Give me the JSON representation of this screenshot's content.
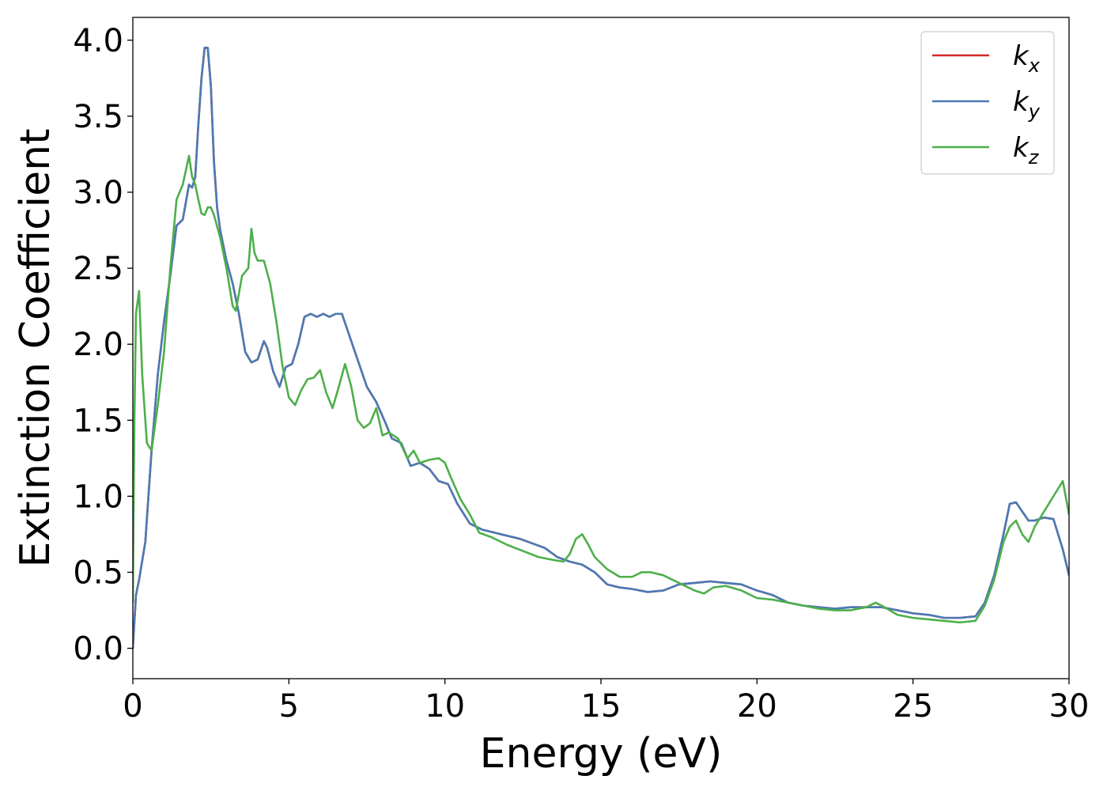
{
  "chart_data": {
    "type": "line",
    "xlabel": "Energy (eV)",
    "ylabel": "Extinction Coefficient",
    "xlim": [
      0,
      30
    ],
    "ylim": [
      -0.2,
      4.15
    ],
    "xticks": [
      0,
      5,
      10,
      15,
      20,
      25,
      30
    ],
    "xtick_labels": [
      "0",
      "5",
      "10",
      "15",
      "20",
      "25",
      "30"
    ],
    "yticks": [
      0.0,
      0.5,
      1.0,
      1.5,
      2.0,
      2.5,
      3.0,
      3.5,
      4.0
    ],
    "ytick_labels": [
      "0.0",
      "0.5",
      "1.0",
      "1.5",
      "2.0",
      "2.5",
      "3.0",
      "3.5",
      "4.0"
    ],
    "grid": false,
    "legend_position": "top-right",
    "series": [
      {
        "name": "k_x",
        "label_main": "k",
        "label_sub": "x",
        "color": "#d62728",
        "x": [
          0,
          0.1,
          0.2,
          0.4,
          0.6,
          0.8,
          1.0,
          1.2,
          1.4,
          1.6,
          1.8,
          1.9,
          2.0,
          2.1,
          2.2,
          2.3,
          2.4,
          2.5,
          2.6,
          2.7,
          2.8,
          3.0,
          3.2,
          3.4,
          3.6,
          3.8,
          4.0,
          4.2,
          4.3,
          4.5,
          4.7,
          4.9,
          5.1,
          5.3,
          5.5,
          5.7,
          5.9,
          6.1,
          6.3,
          6.5,
          6.7,
          6.9,
          7.2,
          7.5,
          7.8,
          8.1,
          8.3,
          8.6,
          8.9,
          9.2,
          9.5,
          9.8,
          10.1,
          10.4,
          10.8,
          11.2,
          11.6,
          12.0,
          12.4,
          12.8,
          13.2,
          13.6,
          14.0,
          14.4,
          14.8,
          15.2,
          15.6,
          16.0,
          16.5,
          17.0,
          17.5,
          18.0,
          18.5,
          19.0,
          19.5,
          20.0,
          20.5,
          21.0,
          21.5,
          22.0,
          22.5,
          23.0,
          23.5,
          24.0,
          24.5,
          25.0,
          25.5,
          26.0,
          26.5,
          27.0,
          27.3,
          27.6,
          27.9,
          28.1,
          28.3,
          28.5,
          28.7,
          28.9,
          29.2,
          29.5,
          29.8,
          30.0
        ],
        "y": [
          0.0,
          0.35,
          0.45,
          0.7,
          1.3,
          1.8,
          2.15,
          2.45,
          2.78,
          2.82,
          3.05,
          3.03,
          3.1,
          3.45,
          3.75,
          3.95,
          3.95,
          3.7,
          3.2,
          2.9,
          2.75,
          2.55,
          2.4,
          2.2,
          1.95,
          1.88,
          1.9,
          2.02,
          1.98,
          1.82,
          1.72,
          1.85,
          1.87,
          2.0,
          2.18,
          2.2,
          2.18,
          2.2,
          2.18,
          2.2,
          2.2,
          2.08,
          1.9,
          1.72,
          1.62,
          1.48,
          1.38,
          1.35,
          1.2,
          1.22,
          1.18,
          1.1,
          1.08,
          0.95,
          0.82,
          0.78,
          0.76,
          0.74,
          0.72,
          0.69,
          0.66,
          0.6,
          0.57,
          0.55,
          0.5,
          0.42,
          0.4,
          0.39,
          0.37,
          0.38,
          0.42,
          0.43,
          0.44,
          0.43,
          0.42,
          0.38,
          0.35,
          0.3,
          0.28,
          0.27,
          0.26,
          0.27,
          0.27,
          0.27,
          0.25,
          0.23,
          0.22,
          0.2,
          0.2,
          0.21,
          0.3,
          0.48,
          0.75,
          0.95,
          0.96,
          0.9,
          0.84,
          0.84,
          0.86,
          0.85,
          0.65,
          0.48
        ]
      },
      {
        "name": "k_y",
        "label_main": "k",
        "label_sub": "y",
        "color": "#4a7ab5",
        "x": [
          0,
          0.1,
          0.2,
          0.4,
          0.6,
          0.8,
          1.0,
          1.2,
          1.4,
          1.6,
          1.8,
          1.9,
          2.0,
          2.1,
          2.2,
          2.3,
          2.4,
          2.5,
          2.6,
          2.7,
          2.8,
          3.0,
          3.2,
          3.4,
          3.6,
          3.8,
          4.0,
          4.2,
          4.3,
          4.5,
          4.7,
          4.9,
          5.1,
          5.3,
          5.5,
          5.7,
          5.9,
          6.1,
          6.3,
          6.5,
          6.7,
          6.9,
          7.2,
          7.5,
          7.8,
          8.1,
          8.3,
          8.6,
          8.9,
          9.2,
          9.5,
          9.8,
          10.1,
          10.4,
          10.8,
          11.2,
          11.6,
          12.0,
          12.4,
          12.8,
          13.2,
          13.6,
          14.0,
          14.4,
          14.8,
          15.2,
          15.6,
          16.0,
          16.5,
          17.0,
          17.5,
          18.0,
          18.5,
          19.0,
          19.5,
          20.0,
          20.5,
          21.0,
          21.5,
          22.0,
          22.5,
          23.0,
          23.5,
          24.0,
          24.5,
          25.0,
          25.5,
          26.0,
          26.5,
          27.0,
          27.3,
          27.6,
          27.9,
          28.1,
          28.3,
          28.5,
          28.7,
          28.9,
          29.2,
          29.5,
          29.8,
          30.0
        ],
        "y": [
          0.0,
          0.35,
          0.45,
          0.7,
          1.3,
          1.8,
          2.15,
          2.45,
          2.78,
          2.82,
          3.05,
          3.03,
          3.1,
          3.45,
          3.75,
          3.95,
          3.95,
          3.7,
          3.2,
          2.9,
          2.75,
          2.55,
          2.4,
          2.2,
          1.95,
          1.88,
          1.9,
          2.02,
          1.98,
          1.82,
          1.72,
          1.85,
          1.87,
          2.0,
          2.18,
          2.2,
          2.18,
          2.2,
          2.18,
          2.2,
          2.2,
          2.08,
          1.9,
          1.72,
          1.62,
          1.48,
          1.38,
          1.35,
          1.2,
          1.22,
          1.18,
          1.1,
          1.08,
          0.95,
          0.82,
          0.78,
          0.76,
          0.74,
          0.72,
          0.69,
          0.66,
          0.6,
          0.57,
          0.55,
          0.5,
          0.42,
          0.4,
          0.39,
          0.37,
          0.38,
          0.42,
          0.43,
          0.44,
          0.43,
          0.42,
          0.38,
          0.35,
          0.3,
          0.28,
          0.27,
          0.26,
          0.27,
          0.27,
          0.27,
          0.25,
          0.23,
          0.22,
          0.2,
          0.2,
          0.21,
          0.3,
          0.48,
          0.75,
          0.95,
          0.96,
          0.9,
          0.84,
          0.84,
          0.86,
          0.85,
          0.65,
          0.48
        ]
      },
      {
        "name": "k_z",
        "label_main": "k",
        "label_sub": "z",
        "color": "#4daf4a",
        "x": [
          0,
          0.05,
          0.1,
          0.2,
          0.3,
          0.45,
          0.6,
          0.8,
          1.0,
          1.2,
          1.4,
          1.6,
          1.8,
          1.9,
          2.0,
          2.1,
          2.2,
          2.3,
          2.4,
          2.5,
          2.6,
          2.8,
          3.0,
          3.2,
          3.3,
          3.5,
          3.7,
          3.8,
          3.9,
          4.0,
          4.2,
          4.4,
          4.6,
          4.8,
          5.0,
          5.2,
          5.4,
          5.6,
          5.8,
          6.0,
          6.2,
          6.4,
          6.6,
          6.8,
          7.0,
          7.2,
          7.4,
          7.6,
          7.8,
          8.0,
          8.2,
          8.5,
          8.8,
          9.0,
          9.2,
          9.5,
          9.8,
          10.0,
          10.2,
          10.5,
          10.8,
          11.1,
          11.5,
          12.0,
          12.5,
          13.0,
          13.5,
          13.8,
          14.0,
          14.2,
          14.4,
          14.6,
          14.8,
          15.2,
          15.6,
          16.0,
          16.3,
          16.6,
          17.0,
          17.5,
          18.0,
          18.3,
          18.6,
          19.0,
          19.5,
          20.0,
          20.5,
          21.0,
          21.5,
          22.0,
          22.5,
          23.0,
          23.5,
          23.8,
          24.0,
          24.5,
          25.0,
          25.5,
          26.0,
          26.5,
          27.0,
          27.3,
          27.6,
          27.9,
          28.1,
          28.3,
          28.5,
          28.7,
          28.9,
          29.2,
          29.5,
          29.8,
          30.0
        ],
        "y": [
          0.3,
          1.5,
          2.2,
          2.35,
          1.8,
          1.35,
          1.3,
          1.6,
          1.95,
          2.5,
          2.95,
          3.05,
          3.24,
          3.1,
          3.05,
          2.95,
          2.86,
          2.85,
          2.9,
          2.9,
          2.85,
          2.7,
          2.5,
          2.25,
          2.22,
          2.45,
          2.5,
          2.76,
          2.6,
          2.55,
          2.55,
          2.4,
          2.15,
          1.85,
          1.65,
          1.6,
          1.7,
          1.77,
          1.78,
          1.83,
          1.68,
          1.58,
          1.72,
          1.87,
          1.72,
          1.5,
          1.45,
          1.48,
          1.58,
          1.4,
          1.42,
          1.38,
          1.25,
          1.3,
          1.22,
          1.24,
          1.25,
          1.22,
          1.12,
          0.98,
          0.88,
          0.76,
          0.73,
          0.68,
          0.64,
          0.6,
          0.58,
          0.57,
          0.62,
          0.72,
          0.75,
          0.68,
          0.6,
          0.52,
          0.47,
          0.47,
          0.5,
          0.5,
          0.48,
          0.43,
          0.38,
          0.36,
          0.4,
          0.41,
          0.38,
          0.33,
          0.32,
          0.3,
          0.28,
          0.26,
          0.25,
          0.25,
          0.27,
          0.3,
          0.28,
          0.22,
          0.2,
          0.19,
          0.18,
          0.17,
          0.18,
          0.28,
          0.45,
          0.7,
          0.8,
          0.84,
          0.75,
          0.7,
          0.8,
          0.9,
          1.0,
          1.1,
          0.88
        ]
      }
    ]
  }
}
